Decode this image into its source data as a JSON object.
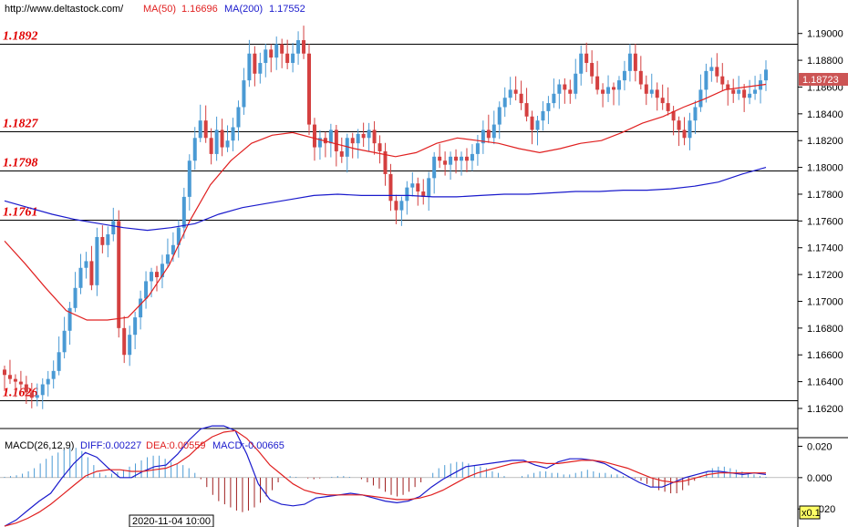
{
  "header": {
    "source": "http://www.deltastock.com/",
    "ma50_label": "MA(50)",
    "ma50_value": "1.16696",
    "ma200_label": "MA(200)",
    "ma200_value": "1.17552"
  },
  "macd_header": {
    "label": "MACD(26,12,9)",
    "diff": "DIFF:0.00227",
    "dea": "DEA:0.00559",
    "macd": "MACD:-0.00665"
  },
  "colors": {
    "bull": "#4a9ad4",
    "bear": "#d44040",
    "ma50": "#e02020",
    "ma200": "#1a1acc",
    "level_text": "#e00000",
    "price_tag": "#cc5555"
  },
  "price_tag": "1.18723",
  "time_label": "2020-11-04 10:00",
  "scale_label": "x0.1",
  "chart_data": [
    {
      "type": "candlestick",
      "title": "",
      "y_axis_ticks": [
        "1.19000",
        "1.18800",
        "1.18600",
        "1.18400",
        "1.18200",
        "1.18000",
        "1.17800",
        "1.17600",
        "1.17400",
        "1.17200",
        "1.17000",
        "1.16800",
        "1.16600",
        "1.16400",
        "1.16200"
      ],
      "ylim": [
        1.1605,
        1.1925
      ],
      "levels": [
        {
          "value": 1.1892,
          "label": "1.1892"
        },
        {
          "value": 1.1827,
          "label": "1.1827"
        },
        {
          "value": 1.1798,
          "label": "1.1798"
        },
        {
          "value": 1.1761,
          "label": "1.1761"
        },
        {
          "value": 1.1626,
          "label": "1.1626"
        }
      ],
      "last_price": 1.18723,
      "candle_path": [
        1.1645,
        1.1642,
        1.164,
        1.1638,
        1.1632,
        1.1628,
        1.163,
        1.1638,
        1.1642,
        1.1648,
        1.1662,
        1.1678,
        1.1695,
        1.171,
        1.1725,
        1.173,
        1.1712,
        1.1748,
        1.1742,
        1.175,
        1.176,
        1.168,
        1.166,
        1.1675,
        1.1688,
        1.1702,
        1.1715,
        1.1722,
        1.1718,
        1.1728,
        1.1735,
        1.1742,
        1.1755,
        1.1778,
        1.1805,
        1.1822,
        1.1835,
        1.1822,
        1.181,
        1.1828,
        1.1815,
        1.182,
        1.183,
        1.1845,
        1.1865,
        1.1885,
        1.187,
        1.1878,
        1.1888,
        1.1882,
        1.1892,
        1.1885,
        1.1878,
        1.1885,
        1.1895,
        1.1885,
        1.1832,
        1.1815,
        1.1822,
        1.1818,
        1.1828,
        1.1812,
        1.1808,
        1.1822,
        1.1818,
        1.1825,
        1.1822,
        1.1828,
        1.1818,
        1.1812,
        1.1795,
        1.1775,
        1.1768,
        1.1775,
        1.1785,
        1.1788,
        1.1782,
        1.1778,
        1.1792,
        1.1808,
        1.1805,
        1.1802,
        1.1808,
        1.1805,
        1.1808,
        1.1805,
        1.181,
        1.1818,
        1.1828,
        1.1822,
        1.1832,
        1.1845,
        1.1852,
        1.1858,
        1.1855,
        1.1848,
        1.1838,
        1.1828,
        1.1835,
        1.1842,
        1.1848,
        1.1855,
        1.1862,
        1.1858,
        1.1855,
        1.187,
        1.1885,
        1.1878,
        1.1868,
        1.1858,
        1.1855,
        1.186,
        1.1858,
        1.1865,
        1.1872,
        1.1885,
        1.1872,
        1.1862,
        1.1855,
        1.1858,
        1.1852,
        1.1848,
        1.1842,
        1.1835,
        1.1828,
        1.1822,
        1.1835,
        1.1845,
        1.1858,
        1.1872,
        1.1875,
        1.1868,
        1.1862,
        1.1858,
        1.1855,
        1.1858,
        1.1852,
        1.1855,
        1.1858,
        1.1865,
        1.1873
      ],
      "ma50": [
        1.1745,
        1.1728,
        1.171,
        1.1693,
        1.1686,
        1.1686,
        1.1688,
        1.1704,
        1.1727,
        1.176,
        1.1787,
        1.1805,
        1.1818,
        1.1824,
        1.1826,
        1.1822,
        1.1818,
        1.1814,
        1.1811,
        1.1808,
        1.1811,
        1.1818,
        1.1822,
        1.182,
        1.1818,
        1.1814,
        1.1811,
        1.1814,
        1.1818,
        1.182,
        1.1826,
        1.1833,
        1.1838,
        1.1845,
        1.1851,
        1.1858,
        1.186,
        1.1862
      ],
      "ma200": [
        1.1775,
        1.177,
        1.1765,
        1.1761,
        1.1758,
        1.1755,
        1.1753,
        1.1755,
        1.1758,
        1.1765,
        1.177,
        1.1773,
        1.1776,
        1.1779,
        1.178,
        1.1779,
        1.1779,
        1.1779,
        1.1778,
        1.1778,
        1.1779,
        1.178,
        1.178,
        1.1781,
        1.1782,
        1.1782,
        1.1783,
        1.1783,
        1.1784,
        1.1786,
        1.1789,
        1.1795,
        1.18
      ]
    },
    {
      "type": "macd",
      "title": "",
      "y_axis_ticks": [
        "0.020",
        "0.000",
        "-0.020"
      ],
      "ylim": [
        -0.0315,
        0.0255
      ],
      "histogram": [
        0.0005,
        0.001,
        0.0015,
        0.0025,
        0.004,
        0.006,
        0.009,
        0.012,
        0.014,
        0.016,
        0.018,
        0.019,
        0.019,
        0.017,
        0.013,
        0.008,
        0.003,
        0.0015,
        0.0025,
        0.0035,
        0.005,
        0.007,
        0.009,
        0.011,
        0.013,
        0.014,
        0.014,
        0.012,
        0.01,
        0.009,
        0.008,
        0.006,
        0.003,
        -0.001,
        -0.006,
        -0.011,
        -0.015,
        -0.017,
        -0.019,
        -0.021,
        -0.022,
        -0.021,
        -0.019,
        -0.016,
        -0.012,
        -0.008,
        -0.003,
        0.0005,
        0.001,
        0.0005,
        0.0,
        -0.0005,
        -0.001,
        -0.0005,
        0.0,
        0.0005,
        0.001,
        0.001,
        0.0005,
        0.0,
        -0.001,
        -0.003,
        -0.005,
        -0.007,
        -0.009,
        -0.011,
        -0.012,
        -0.011,
        -0.009,
        -0.006,
        -0.003,
        0.0,
        0.003,
        0.006,
        0.008,
        0.009,
        0.01,
        0.01,
        0.009,
        0.008,
        0.007,
        0.006,
        0.004,
        0.003,
        0.001,
        0.0,
        0.0,
        0.001,
        0.002,
        0.003,
        0.004,
        0.004,
        0.003,
        0.003,
        0.002,
        0.002,
        0.003,
        0.004,
        0.005,
        0.004,
        0.003,
        0.003,
        0.002,
        0.002,
        0.001,
        0.0005,
        -0.0005,
        -0.002,
        -0.004,
        -0.006,
        -0.008,
        -0.009,
        -0.01,
        -0.01,
        -0.008,
        -0.005,
        -0.002,
        0.001,
        0.004,
        0.006,
        0.007,
        0.007,
        0.006,
        0.005,
        0.004,
        0.003,
        0.002,
        0.001,
        0.0005
      ],
      "diff": [
        -0.031,
        -0.027,
        -0.021,
        -0.015,
        -0.01,
        0.0,
        0.009,
        0.016,
        0.013,
        0.006,
        0.0,
        0.0,
        0.004,
        0.007,
        0.008,
        0.015,
        0.024,
        0.031,
        0.033,
        0.033,
        0.03,
        0.015,
        -0.004,
        -0.014,
        -0.017,
        -0.018,
        -0.017,
        -0.013,
        -0.012,
        -0.011,
        -0.01,
        -0.011,
        -0.013,
        -0.015,
        -0.016,
        -0.015,
        -0.012,
        -0.006,
        -0.001,
        0.003,
        0.007,
        0.008,
        0.009,
        0.01,
        0.011,
        0.011,
        0.008,
        0.006,
        0.01,
        0.012,
        0.012,
        0.011,
        0.009,
        0.005,
        0.001,
        -0.003,
        -0.006,
        -0.006,
        -0.003,
        0.0,
        0.002,
        0.004,
        0.004,
        0.003,
        0.002,
        0.003,
        0.002
      ],
      "dea": [
        -0.031,
        -0.029,
        -0.026,
        -0.022,
        -0.017,
        -0.011,
        -0.005,
        0.001,
        0.004,
        0.005,
        0.005,
        0.004,
        0.004,
        0.005,
        0.006,
        0.009,
        0.014,
        0.021,
        0.026,
        0.029,
        0.03,
        0.025,
        0.017,
        0.008,
        0.002,
        -0.004,
        -0.008,
        -0.01,
        -0.011,
        -0.011,
        -0.011,
        -0.011,
        -0.012,
        -0.013,
        -0.014,
        -0.014,
        -0.013,
        -0.011,
        -0.008,
        -0.004,
        0.0,
        0.003,
        0.005,
        0.007,
        0.009,
        0.01,
        0.01,
        0.009,
        0.009,
        0.01,
        0.011,
        0.011,
        0.01,
        0.008,
        0.006,
        0.003,
        0.0,
        -0.002,
        -0.003,
        -0.002,
        0.0,
        0.002,
        0.003,
        0.003,
        0.003,
        0.003,
        0.003
      ]
    }
  ]
}
